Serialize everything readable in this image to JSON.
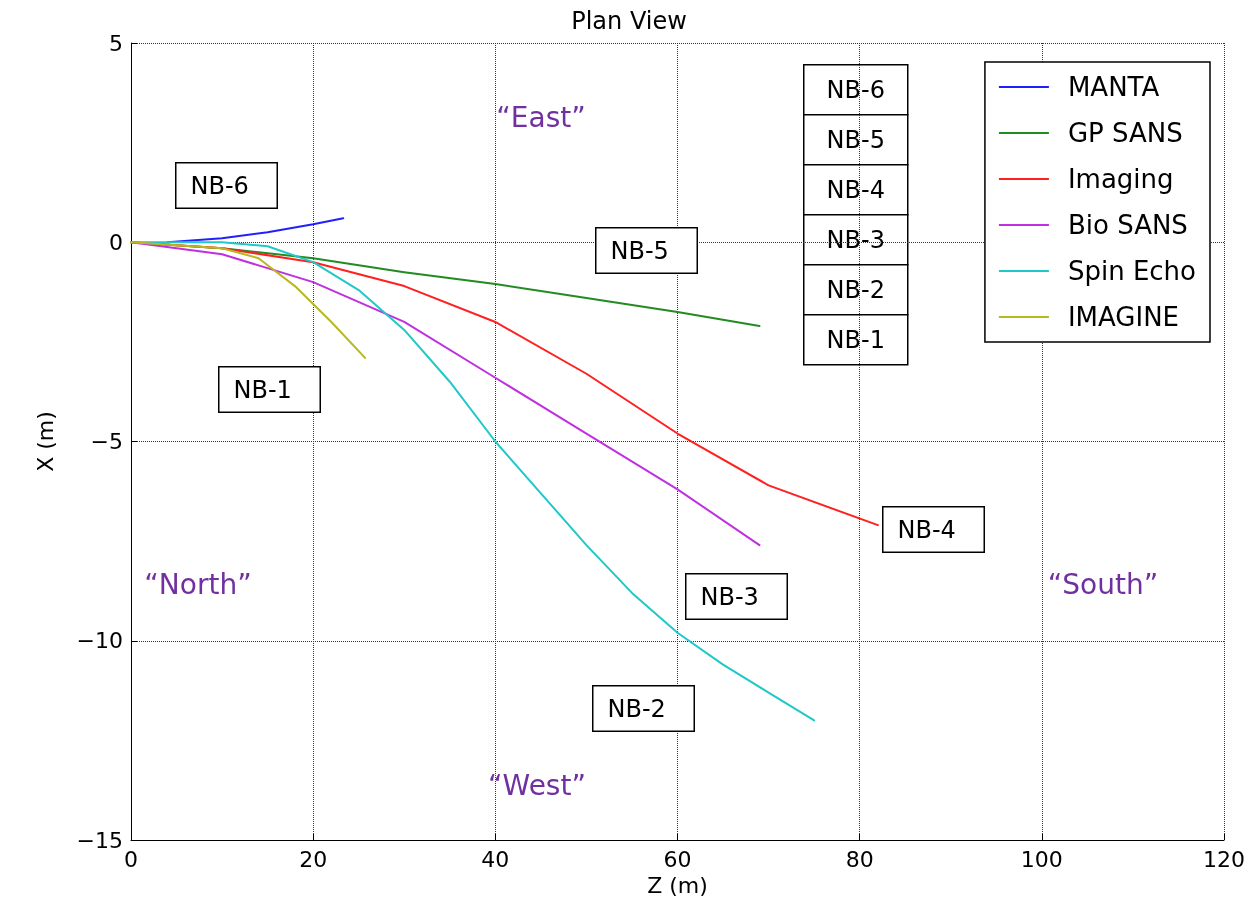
{
  "chart_data": {
    "type": "line",
    "title": "Plan View",
    "xlabel": "Z (m)",
    "ylabel": "X (m)",
    "xlim": [
      0,
      120
    ],
    "xticks": [
      0,
      20,
      40,
      60,
      80,
      100,
      120
    ],
    "ylim": [
      -15,
      5
    ],
    "yticks": [
      {
        "value": -15,
        "label": "−15"
      },
      {
        "value": -10,
        "label": "−10"
      },
      {
        "value": -5,
        "label": "−5"
      },
      0,
      5
    ],
    "grid": true,
    "legend": "top right",
    "marker": "none",
    "line_style": "solid",
    "series": [
      {
        "name": "MANTA",
        "color": "#2020ff",
        "x": [
          4,
          10,
          15,
          20,
          23.3
        ],
        "values": [
          0,
          0.1,
          0.25,
          0.45,
          0.6
        ]
      },
      {
        "name": "GP SANS",
        "color": "#228b22",
        "x": [
          0,
          10,
          20,
          30,
          40,
          50,
          60,
          69
        ],
        "values": [
          0,
          -0.15,
          -0.4,
          -0.75,
          -1.05,
          -1.4,
          -1.75,
          -2.1
        ]
      },
      {
        "name": "Imaging",
        "color": "#ff2020",
        "x": [
          0,
          10,
          20,
          30,
          40,
          50,
          60,
          70,
          82
        ],
        "values": [
          0,
          -0.15,
          -0.5,
          -1.1,
          -2.0,
          -3.3,
          -4.8,
          -6.1,
          -7.1
        ]
      },
      {
        "name": "Bio SANS",
        "color": "#c030e0",
        "x": [
          0,
          10,
          20,
          30,
          40,
          50,
          60,
          69
        ],
        "values": [
          0,
          -0.3,
          -1.0,
          -2.0,
          -3.4,
          -4.8,
          -6.2,
          -7.6
        ]
      },
      {
        "name": "Spin Echo",
        "color": "#20c8c8",
        "x": [
          0,
          10,
          15,
          20,
          25,
          30,
          35,
          40,
          45,
          50,
          55,
          60,
          65,
          70,
          75
        ],
        "values": [
          0,
          0,
          -0.1,
          -0.5,
          -1.2,
          -2.2,
          -3.5,
          -5.0,
          -6.3,
          -7.6,
          -8.8,
          -9.8,
          -10.6,
          -11.3,
          -12.0
        ]
      },
      {
        "name": "IMAGINE",
        "color": "#b8b820",
        "x": [
          0,
          10,
          14,
          18,
          22,
          25.7
        ],
        "values": [
          0,
          -0.15,
          -0.4,
          -1.1,
          -2.0,
          -2.9
        ]
      }
    ],
    "annotations": [
      "NB-6",
      "NB-5",
      "NB-4",
      "NB-3",
      "NB-2",
      "NB-1",
      "NB-6",
      "NB-5",
      "NB-1",
      "NB-4",
      "NB-3",
      "NB-2",
      "“East”",
      "“North”",
      "“South”",
      "“West”"
    ]
  }
}
